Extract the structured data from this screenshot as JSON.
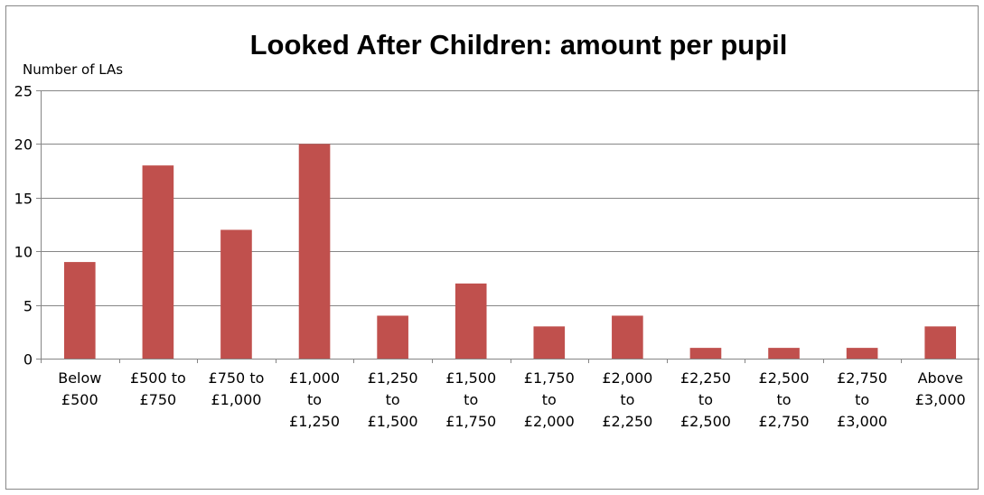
{
  "chart_data": {
    "type": "bar",
    "title": "Looked After Children: amount per pupil",
    "ylabel": "Number of LAs",
    "xlabel": "",
    "ylim": [
      0,
      25
    ],
    "yticks": [
      0,
      5,
      10,
      15,
      20,
      25
    ],
    "grid": true,
    "legend": "none",
    "bar_color": "#c0504d",
    "categories": [
      [
        "Below",
        "£500"
      ],
      [
        "£500 to",
        "£750"
      ],
      [
        "£750 to",
        "£1,000"
      ],
      [
        "£1,000",
        "to",
        "£1,250"
      ],
      [
        "£1,250",
        "to",
        "£1,500"
      ],
      [
        "£1,500",
        "to",
        "£1,750"
      ],
      [
        "£1,750",
        "to",
        "£2,000"
      ],
      [
        "£2,000",
        "to",
        "£2,250"
      ],
      [
        "£2,250",
        "to",
        "£2,500"
      ],
      [
        "£2,500",
        "to",
        "£2,750"
      ],
      [
        "£2,750",
        "to",
        "£3,000"
      ],
      [
        "Above",
        "£3,000"
      ]
    ],
    "values": [
      9,
      18,
      12,
      20,
      4,
      7,
      3,
      4,
      1,
      1,
      1,
      3
    ]
  }
}
